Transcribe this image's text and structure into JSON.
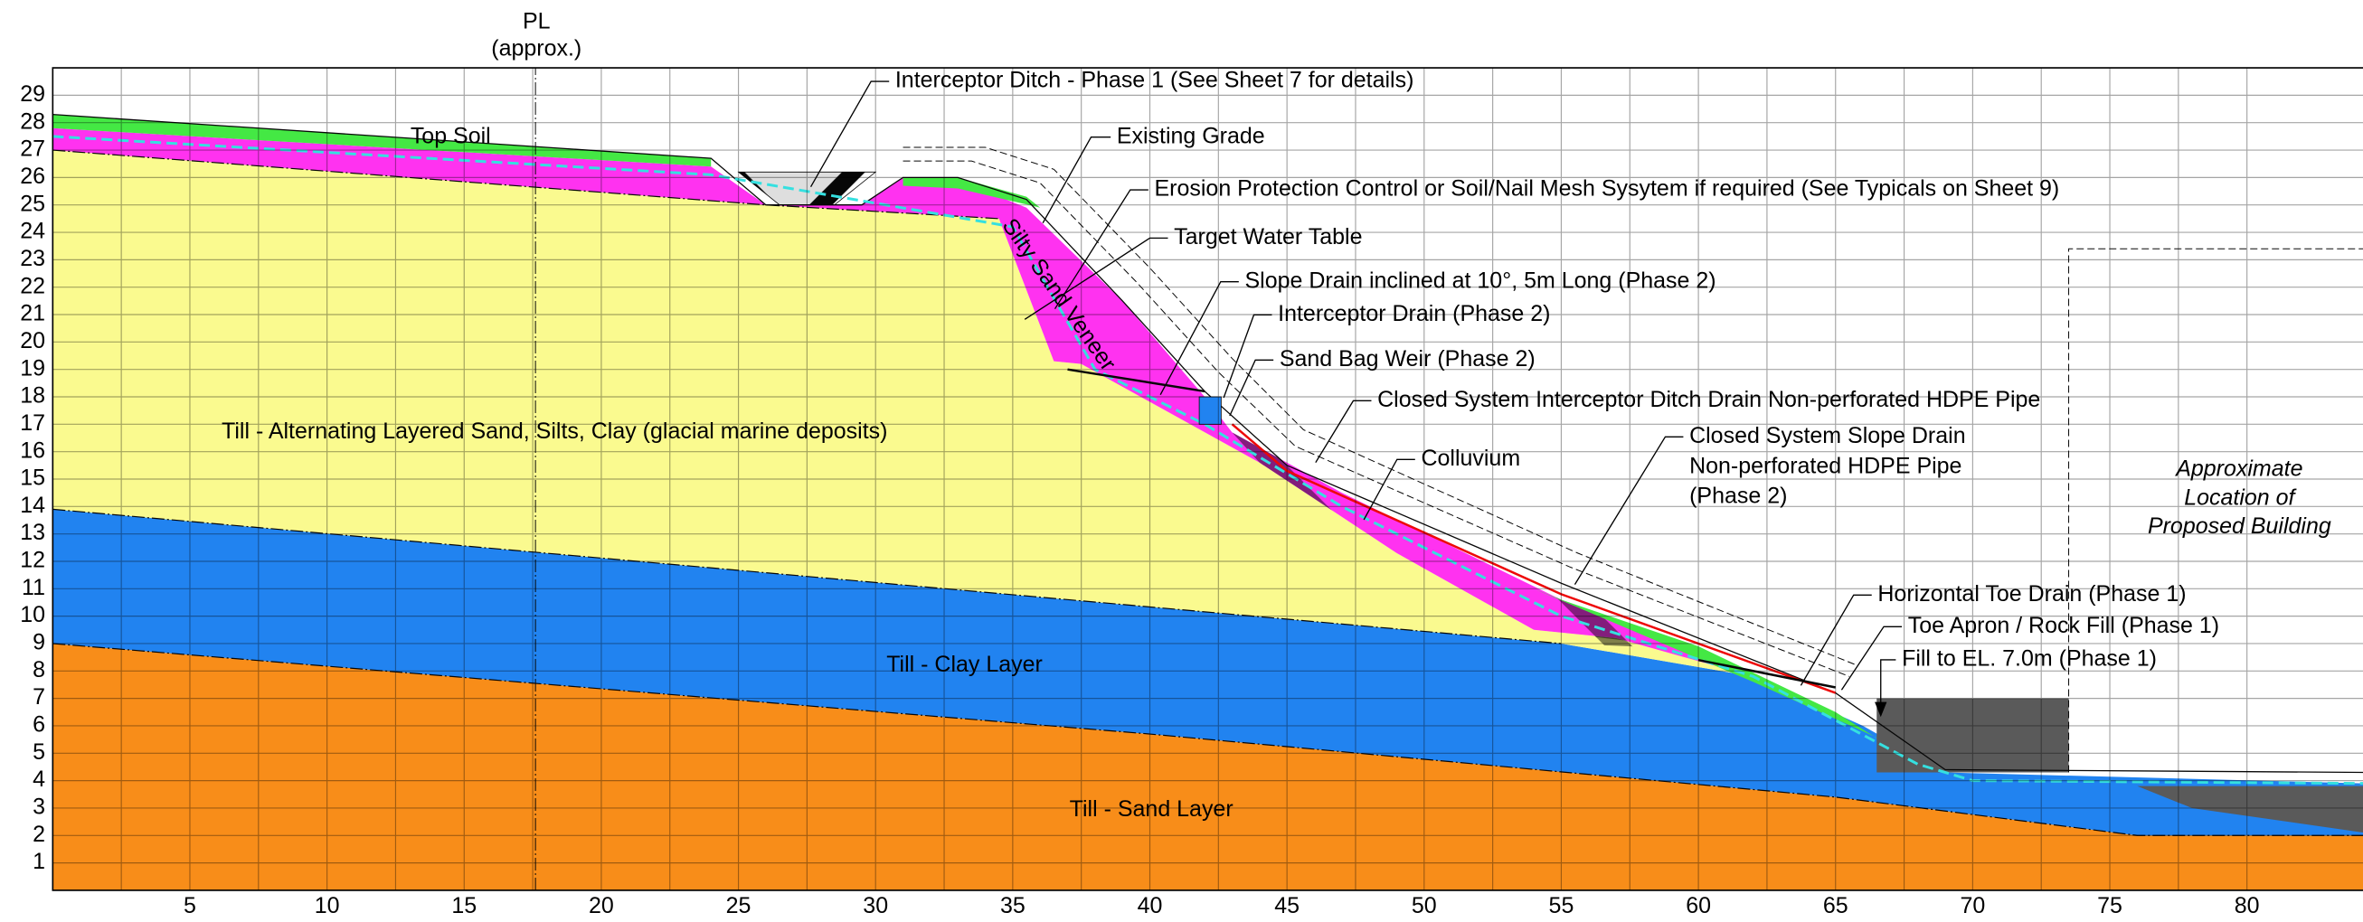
{
  "header": {
    "pl_label": "PL",
    "pl_note": "(approx.)"
  },
  "axes": {
    "x_ticks": [
      5,
      10,
      15,
      20,
      25,
      30,
      35,
      40,
      45,
      50,
      55,
      60,
      65,
      70,
      75,
      80
    ],
    "y_ticks": [
      1,
      2,
      3,
      4,
      5,
      6,
      7,
      8,
      9,
      10,
      11,
      12,
      13,
      14,
      15,
      16,
      17,
      18,
      19,
      20,
      21,
      22,
      23,
      24,
      25,
      26,
      27,
      28,
      29
    ]
  },
  "layers": {
    "top_soil": "Top Soil",
    "till_alternating": "Till - Alternating  Layered Sand, Silts, Clay (glacial marine deposits)",
    "silty_sand": "Silty Sand Veneer",
    "clay": "Till - Clay Layer",
    "sand": "Till - Sand Layer"
  },
  "annotations": {
    "interceptor_ditch": "Interceptor Ditch - Phase 1 (See Sheet 7 for details)",
    "existing_grade": "Existing Grade",
    "erosion": "Erosion Protection Control or Soil/Nail Mesh Sysytem if required (See Typicals on Sheet 9)",
    "water_table": "Target Water Table",
    "slope_drain": "Slope Drain inclined at 10°, 5m Long (Phase 2)",
    "interceptor_drain": "Interceptor Drain (Phase 2)",
    "sand_bag": "Sand Bag Weir (Phase 2)",
    "closed_ditch": "Closed System Interceptor Ditch Drain Non-perforated HDPE Pipe",
    "colluvium": "Colluvium",
    "closed_slope": [
      "Closed System Slope Drain",
      "Non-perforated HDPE Pipe",
      "(Phase 2)"
    ],
    "toe_drain": "Horizontal Toe Drain (Phase 1)",
    "toe_apron": "Toe Apron / Rock Fill (Phase 1)",
    "fill": "Fill to EL. 7.0m (Phase 1)",
    "building": [
      "Approximate",
      "Location of",
      "Proposed Building"
    ]
  }
}
